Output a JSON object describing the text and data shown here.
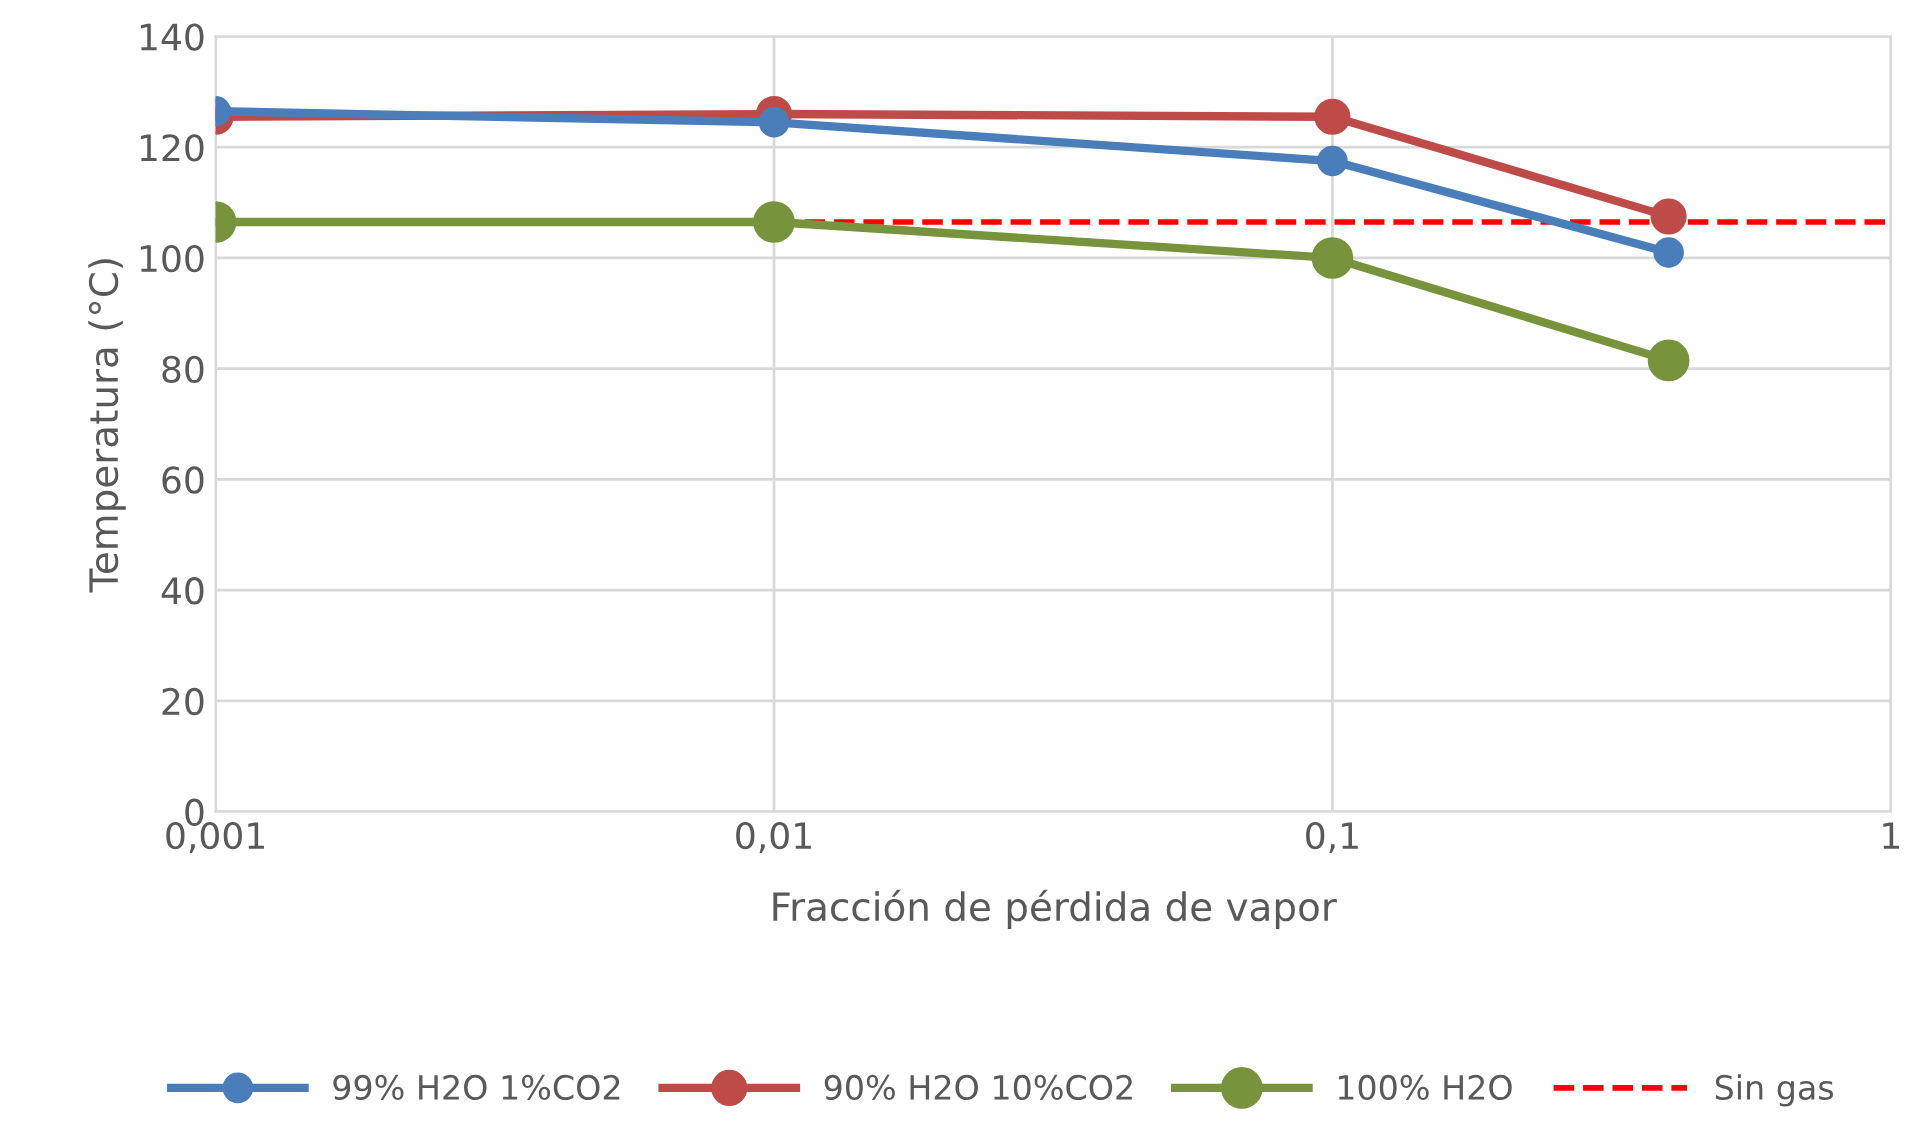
{
  "chart_data": {
    "type": "line",
    "xlabel": "Fracción de pérdida de vapor",
    "ylabel": "Temperatura (°C)",
    "log": "x",
    "x": [
      0.001,
      0.01,
      0.1,
      0.4
    ],
    "series": [
      {
        "name": "99% H2O 1%CO2",
        "color": "#4a7ebb",
        "values": [
          126.5,
          124.5,
          117.5,
          101
        ]
      },
      {
        "name": "90% H2O 10%CO2",
        "color": "#be4b48",
        "values": [
          125.5,
          126,
          125.5,
          107.5
        ]
      },
      {
        "name": "100% H2O",
        "color": "#77933c",
        "values": [
          106.5,
          106.5,
          100,
          81.5
        ]
      }
    ],
    "ref_lines": [
      {
        "axis": "y",
        "value": 106.5,
        "label": "Sin gas",
        "color": "#ff0000",
        "line_style": "dashed"
      }
    ],
    "xlim": [
      0.001,
      1
    ],
    "xticks": [
      {
        "value": 0.001,
        "label": "0,001"
      },
      {
        "value": 0.01,
        "label": "0,01"
      },
      {
        "value": 0.1,
        "label": "0,1"
      },
      {
        "value": 1,
        "label": "1"
      }
    ],
    "ylim": [
      0,
      140
    ],
    "yticks": [
      0,
      20,
      40,
      60,
      80,
      100,
      120,
      140
    ],
    "grid": true,
    "legend": "bottom",
    "marker": "circle",
    "line_style": "solid"
  }
}
